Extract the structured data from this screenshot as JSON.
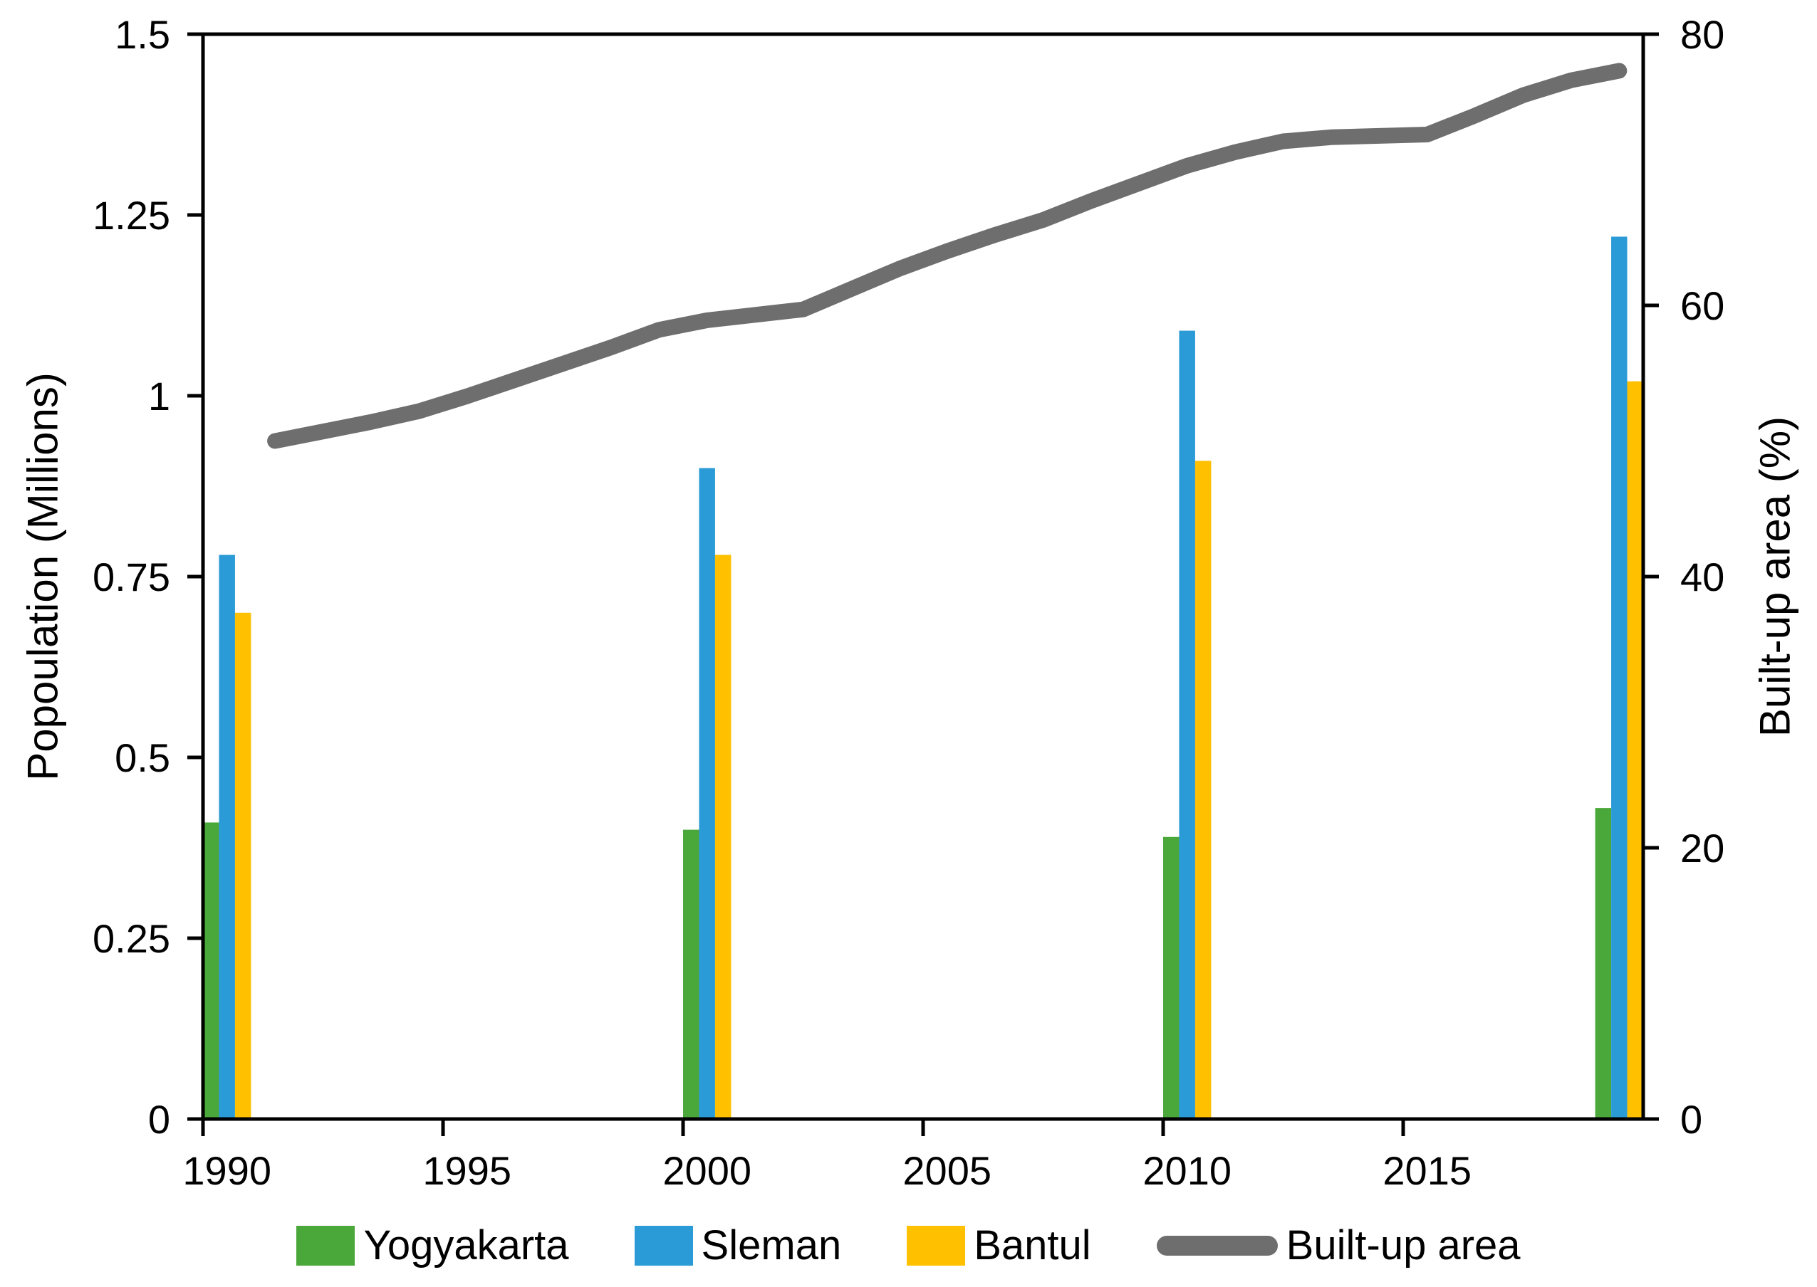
{
  "chart_data": {
    "type": "combo-bar-line",
    "left_axis": {
      "label": "Popoulation (Millions)",
      "min": 0,
      "max": 1.5,
      "ticks": [
        0,
        0.25,
        0.5,
        0.75,
        1,
        1.25,
        1.5
      ],
      "tick_labels": [
        "0",
        "0.25",
        "0.5",
        "0.75",
        "1",
        "1.25",
        "1.5"
      ]
    },
    "right_axis": {
      "label": "Built-up area (%)",
      "min": 0,
      "max": 80,
      "ticks": [
        0,
        20,
        40,
        60,
        80
      ],
      "tick_labels": [
        "0",
        "20",
        "40",
        "60",
        "80"
      ]
    },
    "x_axis": {
      "range_years": [
        1990,
        2019
      ],
      "tick_years": [
        1990,
        1995,
        2000,
        2005,
        2010,
        2015
      ],
      "tick_labels": [
        "1990",
        "1995",
        "2000",
        "2005",
        "2010",
        "2015"
      ]
    },
    "bar_years": [
      1990,
      2000,
      2010,
      2019
    ],
    "bar_series": [
      {
        "name": "Yogyakarta",
        "color": "#4aa73a",
        "values": [
          0.41,
          0.4,
          0.39,
          0.43
        ]
      },
      {
        "name": "Sleman",
        "color": "#2a9bd7",
        "values": [
          0.78,
          0.9,
          1.09,
          1.22
        ]
      },
      {
        "name": "Bantul",
        "color": "#ffc000",
        "values": [
          0.7,
          0.78,
          0.91,
          1.02
        ]
      }
    ],
    "line_series": {
      "name": "Built-up area",
      "color": "#6e6e6e",
      "years": [
        1991,
        1992,
        1993,
        1994,
        1995,
        1996,
        1997,
        1998,
        1999,
        2000,
        2001,
        2002,
        2003,
        2004,
        2005,
        2006,
        2007,
        2008,
        2009,
        2010,
        2011,
        2012,
        2013,
        2014,
        2015,
        2016,
        2017,
        2018,
        2019
      ],
      "values": [
        50.0,
        50.7,
        51.4,
        52.2,
        53.3,
        54.5,
        55.7,
        56.9,
        58.2,
        58.9,
        59.3,
        59.7,
        61.2,
        62.7,
        64.0,
        65.2,
        66.3,
        67.7,
        69.0,
        70.3,
        71.3,
        72.1,
        72.4,
        72.5,
        72.6,
        74.0,
        75.5,
        76.6,
        77.3
      ]
    },
    "legend_position": "bottom-center",
    "grid": "off"
  }
}
